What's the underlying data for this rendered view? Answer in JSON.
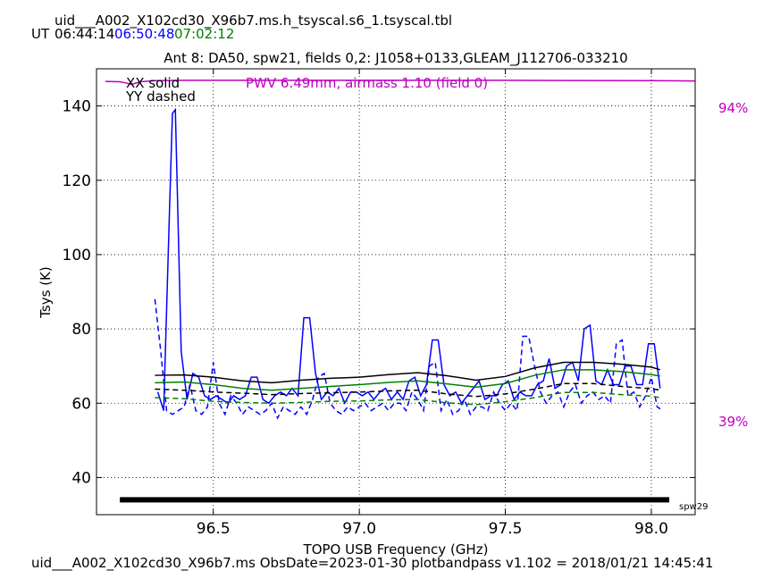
{
  "header": {
    "filename": "uid___A002_X102cd30_X96b7.ms.h_tsyscal.s6_1.tsyscal.tbl",
    "ut_prefix": "UT",
    "ut_times": [
      {
        "text": "06:44:14",
        "color": "#000000"
      },
      {
        "text": "06:50:48",
        "color": "#0000ff"
      },
      {
        "text": "07:02:12",
        "color": "#008000"
      }
    ]
  },
  "footer": {
    "text": "uid___A002_X102cd30_X96b7.ms  ObsDate=2023-01-30   plotbandpass v1.102 = 2018/01/21 14:45:41"
  },
  "chart_data": {
    "type": "line",
    "title": "Ant 8: DA50,  spw21,  fields 0,2: J1058+0133,GLEAM_J112706-033210",
    "xlabel": "TOPO USB Frequency (GHz)",
    "ylabel": "Tsys (K)",
    "xlim": [
      96.1,
      98.15
    ],
    "ylim": [
      30,
      150
    ],
    "xticks": [
      96.5,
      97.0,
      97.5,
      98.0
    ],
    "xtick_labels": [
      "96.5",
      "97.0",
      "97.5",
      "98.0"
    ],
    "yticks": [
      40,
      60,
      80,
      100,
      120,
      140
    ],
    "ytick_labels": [
      "40",
      "60",
      "80",
      "100",
      "120",
      "140"
    ],
    "grid": true,
    "legend": {
      "position": "top-left",
      "entries": [
        "XX solid",
        "YY dashed"
      ]
    },
    "annotations": {
      "pwv": {
        "text": "PWV 6.49mm, airmass 1.10 (field 0)",
        "color": "#bf00bf"
      },
      "right_top": {
        "text": "94%",
        "color": "#bf00bf"
      },
      "right_bottom": {
        "text": "39%",
        "color": "#bf00bf"
      },
      "spw_label": {
        "text": "spw29"
      }
    },
    "spw_bar": {
      "x_start": 96.18,
      "x_end": 98.23,
      "y": 34,
      "color": "#000000"
    },
    "atm_transmission": {
      "color": "#bf00bf",
      "x": [
        96.13,
        96.18,
        96.2,
        96.22,
        96.25,
        96.3,
        96.4,
        96.6,
        97.0,
        97.5,
        98.0,
        98.2
      ],
      "y": [
        146.6,
        146.5,
        146.2,
        145.8,
        146.5,
        146.8,
        146.9,
        146.9,
        146.9,
        146.9,
        146.8,
        146.7
      ]
    },
    "series": [
      {
        "color": "#0000ff",
        "style": "solid",
        "x": [
          96.31,
          96.33,
          96.35,
          96.36,
          96.37,
          96.39,
          96.41,
          96.43,
          96.45,
          96.47,
          96.49,
          96.51,
          96.53,
          96.55,
          96.57,
          96.59,
          96.61,
          96.63,
          96.65,
          96.67,
          96.69,
          96.71,
          96.73,
          96.75,
          96.77,
          96.79,
          96.81,
          96.83,
          96.85,
          96.87,
          96.89,
          96.91,
          96.93,
          96.95,
          96.97,
          96.99,
          97.01,
          97.03,
          97.05,
          97.07,
          97.09,
          97.11,
          97.13,
          97.15,
          97.17,
          97.19,
          97.21,
          97.23,
          97.25,
          97.27,
          97.29,
          97.31,
          97.33,
          97.35,
          97.37,
          97.39,
          97.41,
          97.43,
          97.45,
          97.47,
          97.49,
          97.51,
          97.53,
          97.55,
          97.57,
          97.59,
          97.61,
          97.63,
          97.65,
          97.67,
          97.69,
          97.71,
          97.73,
          97.75,
          97.77,
          97.79,
          97.81,
          97.83,
          97.85,
          97.87,
          97.89,
          97.91,
          97.93,
          97.95,
          97.97,
          97.99,
          98.01,
          98.03
        ],
        "y": [
          63,
          58,
          112,
          138,
          139,
          74,
          61,
          68,
          67,
          62,
          61,
          62,
          61,
          60,
          62,
          61,
          62,
          67,
          67,
          61,
          60,
          62,
          63,
          62,
          64,
          62,
          83,
          83,
          68,
          61,
          63,
          62,
          64,
          60,
          63,
          63,
          62,
          63,
          61,
          63,
          64,
          61,
          63,
          61,
          66,
          67,
          62,
          65,
          77,
          77,
          65,
          62,
          63,
          60,
          62,
          64,
          66,
          61,
          62,
          62,
          65,
          66,
          61,
          63,
          62,
          62,
          65,
          66,
          72,
          64,
          65,
          70,
          71,
          66,
          80,
          81,
          66,
          65,
          69,
          65,
          65,
          70,
          70,
          65,
          65,
          76,
          76,
          64
        ]
      },
      {
        "color": "#0000ff",
        "style": "dashed",
        "x": [
          96.3,
          96.32,
          96.34,
          96.36,
          96.38,
          96.4,
          96.42,
          96.44,
          96.46,
          96.48,
          96.5,
          96.52,
          96.54,
          96.56,
          96.58,
          96.6,
          96.62,
          96.64,
          96.66,
          96.68,
          96.7,
          96.72,
          96.74,
          96.76,
          96.78,
          96.8,
          96.82,
          96.84,
          96.86,
          96.88,
          96.9,
          96.92,
          96.94,
          96.96,
          96.98,
          97.0,
          97.02,
          97.04,
          97.06,
          97.08,
          97.1,
          97.12,
          97.14,
          97.16,
          97.18,
          97.2,
          97.22,
          97.24,
          97.26,
          97.28,
          97.3,
          97.32,
          97.34,
          97.36,
          97.38,
          97.4,
          97.42,
          97.44,
          97.46,
          97.48,
          97.5,
          97.52,
          97.54,
          97.56,
          97.58,
          97.6,
          97.62,
          97.64,
          97.66,
          97.68,
          97.7,
          97.72,
          97.74,
          97.76,
          97.78,
          97.8,
          97.82,
          97.84,
          97.86,
          97.88,
          97.9,
          97.92,
          97.94,
          97.96,
          97.98,
          98.0,
          98.02,
          98.04
        ],
        "y": [
          88,
          74,
          58,
          57,
          58,
          59,
          65,
          58,
          57,
          59,
          71,
          60,
          57,
          62,
          60,
          57,
          59,
          58,
          57,
          58,
          60,
          56,
          59,
          58,
          57,
          59,
          57,
          61,
          67,
          68,
          60,
          58,
          57,
          59,
          58,
          59,
          60,
          58,
          59,
          60,
          58,
          60,
          60,
          58,
          63,
          61,
          58,
          70,
          71,
          58,
          61,
          57,
          58,
          61,
          57,
          59,
          59,
          58,
          63,
          60,
          58,
          60,
          58,
          78,
          78,
          70,
          63,
          60,
          62,
          63,
          59,
          63,
          65,
          60,
          62,
          63,
          61,
          62,
          60,
          76,
          77,
          62,
          63,
          59,
          62,
          67,
          59,
          58
        ]
      },
      {
        "color": "#000000",
        "style": "solid",
        "x": [
          96.3,
          96.4,
          96.5,
          96.6,
          96.7,
          96.8,
          96.9,
          97.0,
          97.1,
          97.2,
          97.3,
          97.4,
          97.5,
          97.6,
          97.7,
          97.8,
          97.9,
          98.0,
          98.03
        ],
        "y": [
          67.5,
          67.6,
          67,
          66,
          65.5,
          66.2,
          66.7,
          67,
          67.7,
          68.2,
          67.4,
          66.2,
          67.2,
          69.5,
          71,
          71,
          70.5,
          69.7,
          69
        ]
      },
      {
        "color": "#000000",
        "style": "dashed",
        "x": [
          96.3,
          96.4,
          96.5,
          96.6,
          96.7,
          96.8,
          96.9,
          97.0,
          97.1,
          97.2,
          97.3,
          97.4,
          97.5,
          97.6,
          97.7,
          97.8,
          97.9,
          98.0,
          98.03
        ],
        "y": [
          63.8,
          63.5,
          63,
          62.7,
          62.3,
          62.6,
          62.8,
          63,
          63.3,
          63.5,
          62.5,
          61.8,
          62.5,
          63.8,
          65.3,
          65.3,
          64.5,
          63.9,
          63.5
        ]
      },
      {
        "color": "#008000",
        "style": "solid",
        "x": [
          96.3,
          96.4,
          96.5,
          96.6,
          96.7,
          96.8,
          96.9,
          97.0,
          97.1,
          97.2,
          97.3,
          97.4,
          97.5,
          97.6,
          97.7,
          97.8,
          97.9,
          98.0,
          98.03
        ],
        "y": [
          65.5,
          65.7,
          65,
          64,
          63.5,
          64,
          64.5,
          65,
          65.6,
          66,
          65.2,
          64.3,
          65.3,
          67.5,
          69,
          69,
          68.5,
          67.7,
          67.3
        ]
      },
      {
        "color": "#008000",
        "style": "dashed",
        "x": [
          96.3,
          96.4,
          96.5,
          96.6,
          96.7,
          96.8,
          96.9,
          97.0,
          97.1,
          97.2,
          97.3,
          97.4,
          97.5,
          97.6,
          97.7,
          97.8,
          97.9,
          98.0,
          98.03
        ],
        "y": [
          61.5,
          61.2,
          60.5,
          60.2,
          60,
          60.2,
          60.5,
          60.6,
          60.9,
          61,
          60.1,
          59.6,
          60.4,
          61.5,
          62.9,
          62.9,
          62.3,
          61.9,
          61.5
        ]
      }
    ]
  }
}
